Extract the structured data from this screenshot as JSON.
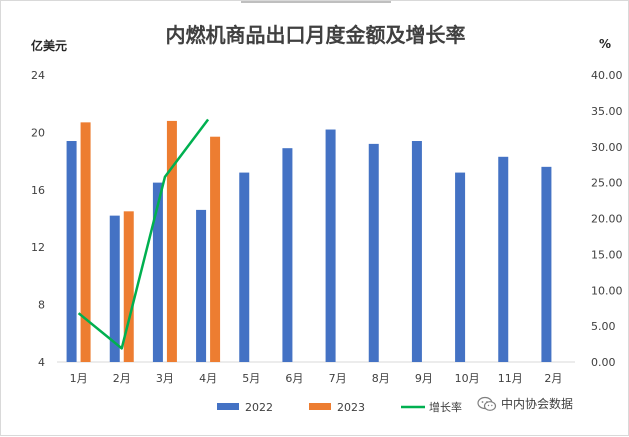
{
  "chart_data": {
    "type": "bar",
    "title": "内燃机商品出口月度金额及增长率",
    "y_left_unit": "亿美元",
    "y_right_unit": "%",
    "categories": [
      "1月",
      "2月",
      "3月",
      "4月",
      "5月",
      "6月",
      "7月",
      "8月",
      "9月",
      "10月",
      "11月",
      "2月"
    ],
    "y_left_ticks": [
      "4",
      "8",
      "12",
      "16",
      "20",
      "24"
    ],
    "y_right_ticks": [
      "0.00",
      "5.00",
      "10.00",
      "15.00",
      "20.00",
      "25.00",
      "30.00",
      "35.00",
      "40.00"
    ],
    "ylim_left": [
      4,
      24
    ],
    "ylim_right": [
      0,
      40
    ],
    "series": [
      {
        "name": "2022",
        "kind": "bar",
        "color": "#4472c4",
        "values": [
          19.4,
          14.2,
          16.5,
          14.6,
          17.2,
          18.9,
          20.2,
          19.2,
          19.4,
          17.2,
          18.3,
          17.6
        ]
      },
      {
        "name": "2023",
        "kind": "bar",
        "color": "#ed7d31",
        "values": [
          20.7,
          14.5,
          20.8,
          19.7,
          null,
          null,
          null,
          null,
          null,
          null,
          null,
          null
        ]
      },
      {
        "name": "增长率",
        "kind": "line",
        "color": "#00b050",
        "axis": "right",
        "values": [
          6.8,
          1.9,
          25.8,
          33.8,
          null,
          null,
          null,
          null,
          null,
          null,
          null,
          null
        ]
      }
    ],
    "grid": false,
    "legend_position": "bottom"
  },
  "watermark": {
    "text": "中内协会数据",
    "icon": "wechat-icon"
  }
}
